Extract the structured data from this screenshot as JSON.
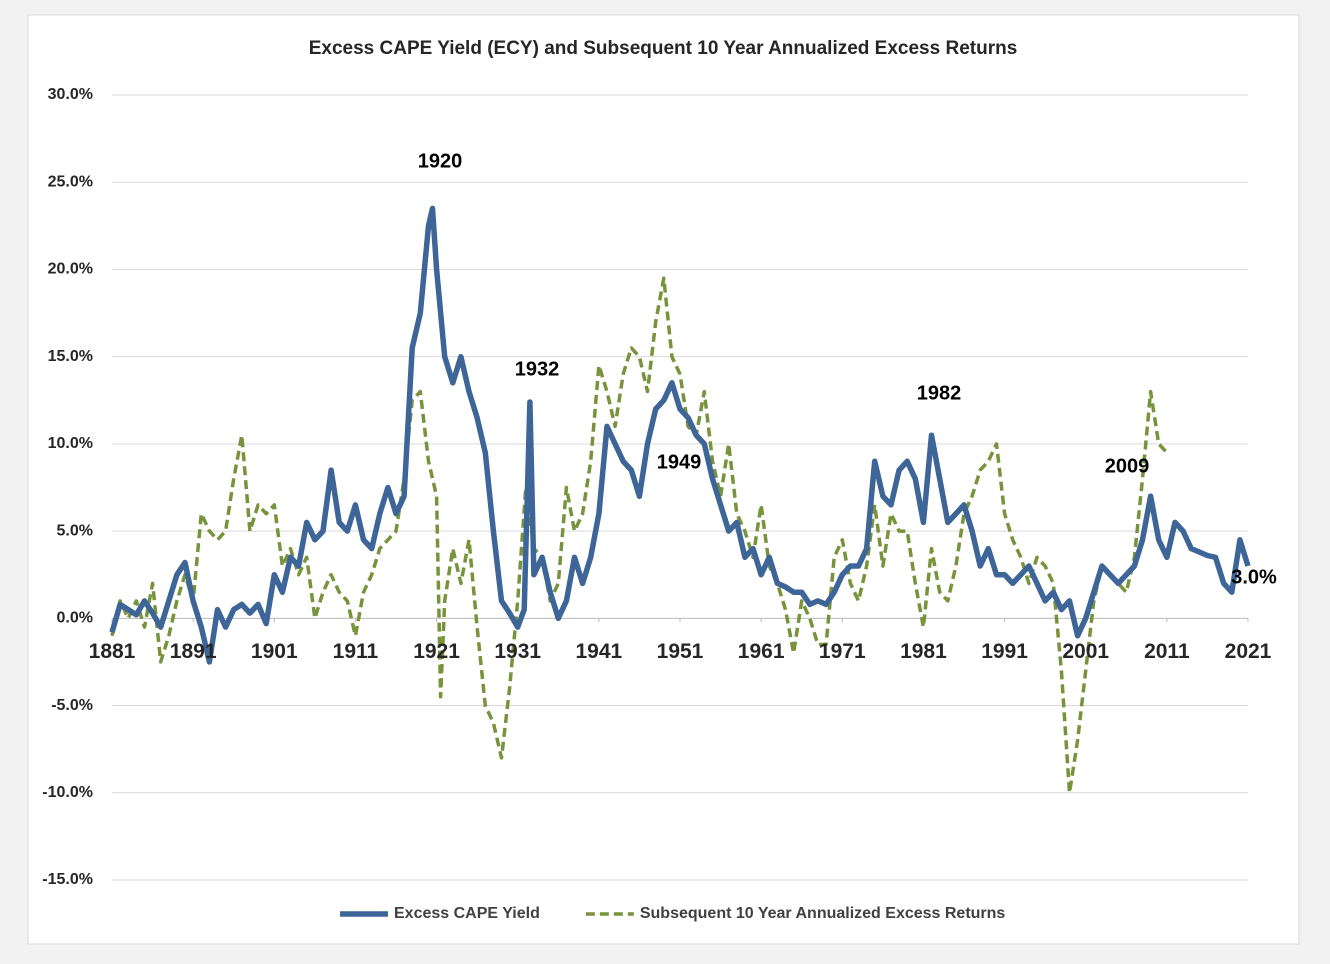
{
  "chart_data": {
    "type": "line",
    "title": "Excess CAPE Yield (ECY) and Subsequent 10 Year Annualized Excess Returns",
    "xlim": [
      1881,
      2021
    ],
    "xticks": [
      1881,
      1891,
      1901,
      1911,
      1921,
      1931,
      1941,
      1951,
      1961,
      1971,
      1981,
      1991,
      2001,
      2011,
      2021
    ],
    "ylim": [
      -15,
      30
    ],
    "yticks": [
      {
        "value": -15,
        "label": "-15.0%"
      },
      {
        "value": -10,
        "label": "-10.0%"
      },
      {
        "value": -5,
        "label": "-5.0%"
      },
      {
        "value": 0,
        "label": "0.0%"
      },
      {
        "value": 5,
        "label": "5.0%"
      },
      {
        "value": 10,
        "label": "10.0%"
      },
      {
        "value": 15,
        "label": "15.0%"
      },
      {
        "value": 20,
        "label": "20.0%"
      },
      {
        "value": 25,
        "label": "25.0%"
      },
      {
        "value": 30,
        "label": "30.0%"
      }
    ],
    "grid": true,
    "legend": "bottom",
    "series": [
      {
        "name": "Excess CAPE Yield",
        "color": "#3e6598",
        "style": "solid",
        "x": [
          1881,
          1882,
          1883,
          1884,
          1885,
          1886,
          1887,
          1888,
          1889,
          1890,
          1891,
          1892,
          1893,
          1894,
          1895,
          1896,
          1897,
          1898,
          1899,
          1900,
          1901,
          1902,
          1903,
          1904,
          1905,
          1906,
          1907,
          1908,
          1909,
          1910,
          1911,
          1912,
          1913,
          1914,
          1915,
          1916,
          1917,
          1918,
          1919,
          1920,
          1920.5,
          1921,
          1922,
          1923,
          1924,
          1925,
          1926,
          1927,
          1928,
          1929,
          1930,
          1931,
          1931.8,
          1932.5,
          1933,
          1934,
          1935,
          1936,
          1937,
          1938,
          1939,
          1940,
          1941,
          1942,
          1943,
          1944,
          1945,
          1946,
          1947,
          1948,
          1949,
          1950,
          1951,
          1952,
          1953,
          1954,
          1955,
          1956,
          1957,
          1958,
          1959,
          1960,
          1961,
          1962,
          1963,
          1964,
          1965,
          1966,
          1967,
          1968,
          1969,
          1970,
          1971,
          1972,
          1973,
          1974,
          1975,
          1976,
          1977,
          1978,
          1979,
          1980,
          1981,
          1982,
          1983,
          1984,
          1985,
          1986,
          1987,
          1988,
          1989,
          1990,
          1991,
          1992,
          1993,
          1994,
          1995,
          1996,
          1997,
          1998,
          1999,
          2000,
          2001,
          2002,
          2003,
          2004,
          2005,
          2006,
          2007,
          2008,
          2009,
          2010,
          2011,
          2012,
          2013,
          2014,
          2015,
          2016,
          2017,
          2018,
          2019,
          2020,
          2021
        ],
        "values": [
          -0.8,
          0.8,
          0.5,
          0.2,
          1.0,
          0.3,
          -0.5,
          1.0,
          2.5,
          3.2,
          1.0,
          -0.5,
          -2.5,
          0.5,
          -0.5,
          0.5,
          0.8,
          0.3,
          0.8,
          -0.3,
          2.5,
          1.5,
          3.5,
          3.0,
          5.5,
          4.5,
          5.0,
          8.5,
          5.5,
          5.0,
          6.5,
          4.5,
          4.0,
          6.0,
          7.5,
          6.0,
          7.0,
          15.5,
          17.5,
          22.5,
          23.5,
          20.0,
          15.0,
          13.5,
          15.0,
          13.0,
          11.5,
          9.5,
          5.0,
          1.0,
          0.3,
          -0.5,
          0.5,
          12.4,
          2.5,
          3.5,
          1.5,
          0.0,
          1.0,
          3.5,
          2.0,
          3.5,
          6.0,
          11.0,
          10.0,
          9.0,
          8.5,
          7.0,
          10.0,
          12.0,
          12.5,
          13.5,
          12.0,
          11.5,
          10.5,
          10.0,
          8.0,
          6.5,
          5.0,
          5.5,
          3.5,
          4.0,
          2.5,
          3.5,
          2.0,
          1.8,
          1.5,
          1.5,
          0.8,
          1.0,
          0.8,
          1.5,
          2.5,
          3.0,
          3.0,
          4.0,
          9.0,
          7.0,
          6.5,
          8.5,
          9.0,
          8.0,
          5.5,
          10.5,
          8.0,
          5.5,
          6.0,
          6.5,
          5.0,
          3.0,
          4.0,
          2.5,
          2.5,
          2.0,
          2.5,
          3.0,
          2.0,
          1.0,
          1.5,
          0.5,
          1.0,
          -1.0,
          0.0,
          1.5,
          3.0,
          2.5,
          2.0,
          2.5,
          3.0,
          4.5,
          7.0,
          4.5,
          3.5,
          5.5,
          5.0,
          4.0,
          3.8,
          3.6,
          3.5,
          2.0,
          1.5,
          4.5,
          3.0
        ]
      },
      {
        "name": "Subsequent 10 Year Annualized Excess Returns",
        "color": "#77933c",
        "style": "dashed",
        "x": [
          1881,
          1882,
          1883,
          1884,
          1885,
          1886,
          1887,
          1888,
          1889,
          1890,
          1891,
          1892,
          1893,
          1894,
          1895,
          1896,
          1897,
          1898,
          1899,
          1900,
          1901,
          1902,
          1903,
          1904,
          1905,
          1906,
          1907,
          1908,
          1909,
          1910,
          1911,
          1912,
          1913,
          1914,
          1915,
          1916,
          1917,
          1918,
          1919,
          1920,
          1921,
          1921.5,
          1922,
          1923,
          1924,
          1925,
          1926,
          1927,
          1928,
          1929,
          1930,
          1931,
          1932,
          1933,
          1934,
          1935,
          1936,
          1937,
          1938,
          1939,
          1940,
          1941,
          1942,
          1943,
          1944,
          1945,
          1946,
          1947,
          1948,
          1949,
          1950,
          1951,
          1952,
          1953,
          1954,
          1955,
          1956,
          1957,
          1958,
          1959,
          1960,
          1961,
          1962,
          1963,
          1964,
          1965,
          1966,
          1967,
          1968,
          1969,
          1970,
          1971,
          1972,
          1973,
          1974,
          1975,
          1976,
          1977,
          1978,
          1979,
          1980,
          1981,
          1982,
          1983,
          1984,
          1985,
          1986,
          1987,
          1988,
          1989,
          1990,
          1991,
          1992,
          1993,
          1994,
          1995,
          1996,
          1997,
          1998,
          1999,
          2000,
          2001,
          2002,
          2003,
          2004,
          2005,
          2006,
          2007,
          2008,
          2009,
          2010,
          2011
        ],
        "values": [
          -1.0,
          1.0,
          0.0,
          1.0,
          -0.5,
          2.0,
          -2.5,
          -1.0,
          1.0,
          2.5,
          1.0,
          6.0,
          5.0,
          4.5,
          5.0,
          8.0,
          10.5,
          5.0,
          6.5,
          6.0,
          6.5,
          3.0,
          4.0,
          2.5,
          3.5,
          0.0,
          1.5,
          2.5,
          1.5,
          1.0,
          -1.0,
          1.5,
          2.5,
          4.0,
          4.5,
          5.0,
          8.0,
          12.5,
          13.0,
          9.0,
          7.0,
          -4.5,
          1.0,
          4.0,
          2.0,
          4.5,
          -0.5,
          -5.0,
          -6.0,
          -8.0,
          -4.0,
          1.0,
          7.5,
          4.0,
          3.5,
          1.0,
          2.0,
          7.5,
          5.0,
          6.0,
          9.0,
          14.5,
          13.0,
          11.0,
          14.0,
          15.5,
          15.0,
          13.0,
          17.0,
          19.5,
          15.0,
          14.0,
          11.0,
          10.5,
          13.0,
          9.0,
          7.0,
          10.0,
          6.0,
          5.0,
          3.5,
          6.5,
          3.0,
          2.0,
          0.5,
          -2.0,
          1.0,
          0.0,
          -1.5,
          -1.5,
          3.5,
          4.5,
          2.0,
          1.0,
          3.0,
          6.5,
          3.0,
          6.0,
          5.0,
          5.0,
          2.0,
          -0.5,
          4.0,
          1.5,
          1.0,
          3.0,
          6.0,
          7.0,
          8.5,
          9.0,
          10.0,
          6.0,
          4.5,
          3.5,
          2.0,
          3.5,
          3.0,
          2.0,
          -3.0,
          -10.0,
          -7.0,
          -3.0,
          1.0,
          3.0,
          2.5,
          2.0,
          1.5,
          3.5,
          8.0,
          13.0,
          10.0,
          9.5
        ]
      }
    ],
    "annotations": [
      {
        "text": "1920"
      },
      {
        "text": "1932"
      },
      {
        "text": "1949"
      },
      {
        "text": "1982"
      },
      {
        "text": "2009"
      },
      {
        "text": "3.0%"
      }
    ]
  }
}
